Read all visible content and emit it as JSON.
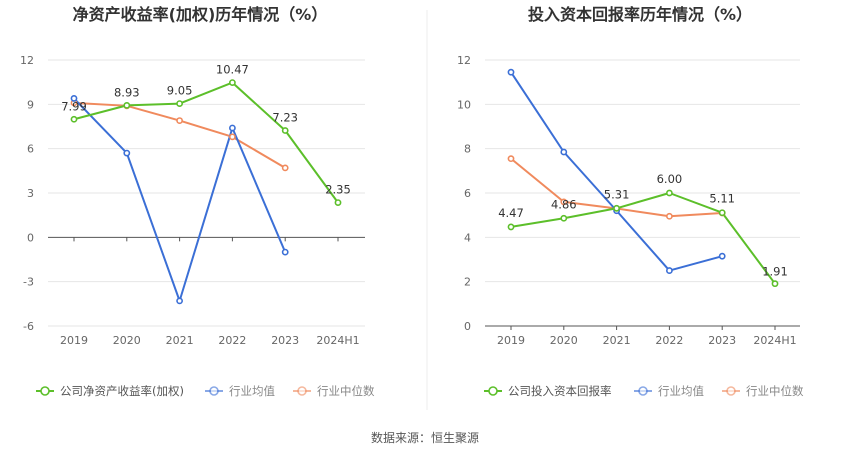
{
  "source_label": "数据来源：恒生聚源",
  "chart_data": [
    {
      "type": "line",
      "title": "净资产收益率(加权)历年情况（%）",
      "categories": [
        "2019",
        "2020",
        "2021",
        "2022",
        "2023",
        "2024H1"
      ],
      "y_ticks": [
        "12",
        "9",
        "6",
        "3",
        "0",
        "-3",
        "-6"
      ],
      "ylim": [
        -6,
        12
      ],
      "grid": true,
      "legend_position": "bottom",
      "series": [
        {
          "name": "公司净资产收益率(加权)",
          "color": "#5cbf2a",
          "values": [
            7.99,
            8.93,
            9.05,
            10.47,
            7.23,
            2.35
          ],
          "labels": [
            "7.99",
            "8.93",
            "9.05",
            "10.47",
            "7.23",
            "2.35"
          ]
        },
        {
          "name": "行业均值",
          "color": "#3b6fd6",
          "values": [
            9.4,
            5.7,
            -4.3,
            7.4,
            -1.0,
            null
          ]
        },
        {
          "name": "行业中位数",
          "color": "#f08a5d",
          "values": [
            9.1,
            8.9,
            7.9,
            6.8,
            4.7,
            null
          ]
        }
      ]
    },
    {
      "type": "line",
      "title": "投入资本回报率历年情况（%）",
      "categories": [
        "2019",
        "2020",
        "2021",
        "2022",
        "2023",
        "2024H1"
      ],
      "y_ticks": [
        "12",
        "10",
        "8",
        "6",
        "4",
        "2",
        "0"
      ],
      "ylim": [
        0,
        12
      ],
      "grid": true,
      "legend_position": "bottom",
      "series": [
        {
          "name": "公司投入资本回报率",
          "color": "#5cbf2a",
          "values": [
            4.47,
            4.86,
            5.31,
            6.0,
            5.11,
            1.91
          ],
          "labels": [
            "4.47",
            "4.86",
            "5.31",
            "6.00",
            "5.11",
            "1.91"
          ]
        },
        {
          "name": "行业均值",
          "color": "#3b6fd6",
          "values": [
            11.45,
            7.85,
            5.2,
            2.5,
            3.15,
            null
          ]
        },
        {
          "name": "行业中位数",
          "color": "#f08a5d",
          "values": [
            7.55,
            5.6,
            5.3,
            4.95,
            5.1,
            null
          ]
        }
      ]
    }
  ]
}
